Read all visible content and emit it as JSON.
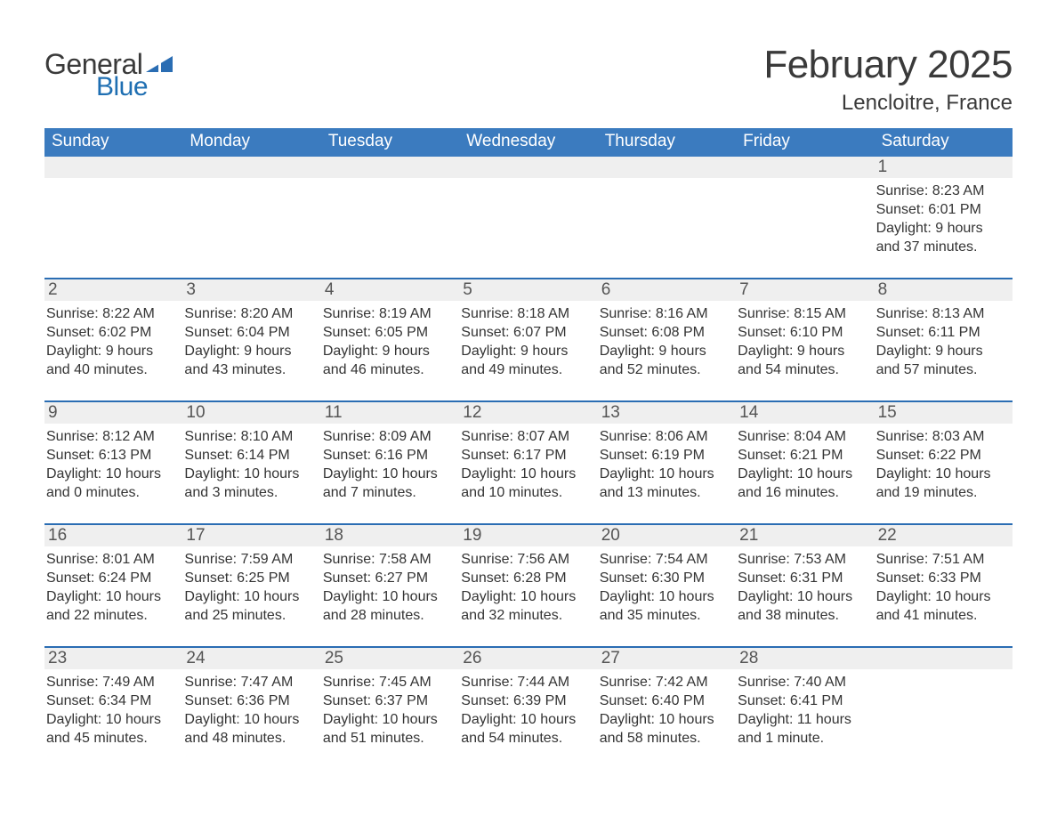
{
  "brand": {
    "line1": "General",
    "line2": "Blue",
    "mark_color": "#2a6db3"
  },
  "title": "February 2025",
  "location": "Lencloitre, France",
  "colors": {
    "header_blue": "#3b7bbf",
    "row_top_line": "#2a6db3",
    "daynum_bg": "#efefef",
    "daynum_text": "#555555",
    "body_text": "#343434",
    "header_text": "#ffffff",
    "background": "#ffffff"
  },
  "day_names": [
    "Sunday",
    "Monday",
    "Tuesday",
    "Wednesday",
    "Thursday",
    "Friday",
    "Saturday"
  ],
  "weeks": [
    [
      null,
      null,
      null,
      null,
      null,
      null,
      {
        "n": 1,
        "sunrise": "8:23 AM",
        "sunset": "6:01 PM",
        "daylight": "9 hours and 37 minutes."
      }
    ],
    [
      {
        "n": 2,
        "sunrise": "8:22 AM",
        "sunset": "6:02 PM",
        "daylight": "9 hours and 40 minutes."
      },
      {
        "n": 3,
        "sunrise": "8:20 AM",
        "sunset": "6:04 PM",
        "daylight": "9 hours and 43 minutes."
      },
      {
        "n": 4,
        "sunrise": "8:19 AM",
        "sunset": "6:05 PM",
        "daylight": "9 hours and 46 minutes."
      },
      {
        "n": 5,
        "sunrise": "8:18 AM",
        "sunset": "6:07 PM",
        "daylight": "9 hours and 49 minutes."
      },
      {
        "n": 6,
        "sunrise": "8:16 AM",
        "sunset": "6:08 PM",
        "daylight": "9 hours and 52 minutes."
      },
      {
        "n": 7,
        "sunrise": "8:15 AM",
        "sunset": "6:10 PM",
        "daylight": "9 hours and 54 minutes."
      },
      {
        "n": 8,
        "sunrise": "8:13 AM",
        "sunset": "6:11 PM",
        "daylight": "9 hours and 57 minutes."
      }
    ],
    [
      {
        "n": 9,
        "sunrise": "8:12 AM",
        "sunset": "6:13 PM",
        "daylight": "10 hours and 0 minutes."
      },
      {
        "n": 10,
        "sunrise": "8:10 AM",
        "sunset": "6:14 PM",
        "daylight": "10 hours and 3 minutes."
      },
      {
        "n": 11,
        "sunrise": "8:09 AM",
        "sunset": "6:16 PM",
        "daylight": "10 hours and 7 minutes."
      },
      {
        "n": 12,
        "sunrise": "8:07 AM",
        "sunset": "6:17 PM",
        "daylight": "10 hours and 10 minutes."
      },
      {
        "n": 13,
        "sunrise": "8:06 AM",
        "sunset": "6:19 PM",
        "daylight": "10 hours and 13 minutes."
      },
      {
        "n": 14,
        "sunrise": "8:04 AM",
        "sunset": "6:21 PM",
        "daylight": "10 hours and 16 minutes."
      },
      {
        "n": 15,
        "sunrise": "8:03 AM",
        "sunset": "6:22 PM",
        "daylight": "10 hours and 19 minutes."
      }
    ],
    [
      {
        "n": 16,
        "sunrise": "8:01 AM",
        "sunset": "6:24 PM",
        "daylight": "10 hours and 22 minutes."
      },
      {
        "n": 17,
        "sunrise": "7:59 AM",
        "sunset": "6:25 PM",
        "daylight": "10 hours and 25 minutes."
      },
      {
        "n": 18,
        "sunrise": "7:58 AM",
        "sunset": "6:27 PM",
        "daylight": "10 hours and 28 minutes."
      },
      {
        "n": 19,
        "sunrise": "7:56 AM",
        "sunset": "6:28 PM",
        "daylight": "10 hours and 32 minutes."
      },
      {
        "n": 20,
        "sunrise": "7:54 AM",
        "sunset": "6:30 PM",
        "daylight": "10 hours and 35 minutes."
      },
      {
        "n": 21,
        "sunrise": "7:53 AM",
        "sunset": "6:31 PM",
        "daylight": "10 hours and 38 minutes."
      },
      {
        "n": 22,
        "sunrise": "7:51 AM",
        "sunset": "6:33 PM",
        "daylight": "10 hours and 41 minutes."
      }
    ],
    [
      {
        "n": 23,
        "sunrise": "7:49 AM",
        "sunset": "6:34 PM",
        "daylight": "10 hours and 45 minutes."
      },
      {
        "n": 24,
        "sunrise": "7:47 AM",
        "sunset": "6:36 PM",
        "daylight": "10 hours and 48 minutes."
      },
      {
        "n": 25,
        "sunrise": "7:45 AM",
        "sunset": "6:37 PM",
        "daylight": "10 hours and 51 minutes."
      },
      {
        "n": 26,
        "sunrise": "7:44 AM",
        "sunset": "6:39 PM",
        "daylight": "10 hours and 54 minutes."
      },
      {
        "n": 27,
        "sunrise": "7:42 AM",
        "sunset": "6:40 PM",
        "daylight": "10 hours and 58 minutes."
      },
      {
        "n": 28,
        "sunrise": "7:40 AM",
        "sunset": "6:41 PM",
        "daylight": "11 hours and 1 minute."
      },
      null
    ]
  ],
  "labels": {
    "sunrise": "Sunrise:",
    "sunset": "Sunset:",
    "daylight": "Daylight:"
  }
}
